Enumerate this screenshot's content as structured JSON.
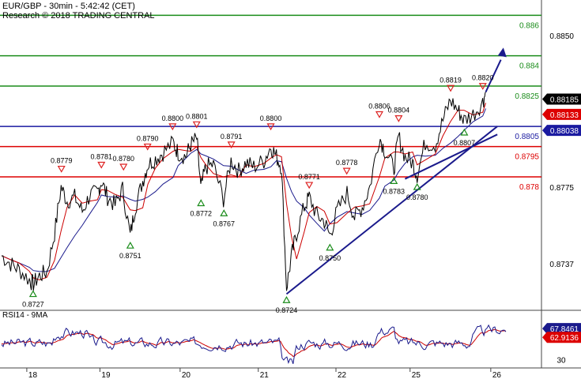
{
  "header": {
    "title": "EUR/GBP - 30min - 5:42:42 (CET)",
    "subtitle": "Research © 2018 TRADING CENTRAL"
  },
  "rsi_panel": {
    "label": "RSI14 - 9MA",
    "axis_label_30": "30",
    "value_rsi": "67.8461",
    "value_ma": "62.9136"
  },
  "colors": {
    "price": "#000000",
    "ma_fast": "#cc0000",
    "ma_slow": "#1a1a8c",
    "support_blue": "#1a1aa0",
    "resistance_red": "#dd0000",
    "target_green": "#1a8c1a",
    "up_marker": "#1a8c1a",
    "down_marker": "#dd2222",
    "arrow": "#1a1a8c"
  },
  "chart_data": {
    "type": "line",
    "title": "EUR/GBP - 30min",
    "x_ticks": [
      "18",
      "19",
      "20",
      "21",
      "22",
      "25",
      "26"
    ],
    "y_ticks": [
      "0.8850",
      "0.8775",
      "0.8737"
    ],
    "horizontal_levels": [
      {
        "label": "0.886",
        "value": 0.886,
        "color": "green"
      },
      {
        "label": "0.884",
        "value": 0.884,
        "color": "green"
      },
      {
        "label": "0.8825",
        "value": 0.8825,
        "color": "green"
      },
      {
        "label": "0.8805",
        "value": 0.8805,
        "color": "blue"
      },
      {
        "label": "0.8795",
        "value": 0.8795,
        "color": "red"
      },
      {
        "label": "0.878",
        "value": 0.878,
        "color": "red"
      }
    ],
    "current_price_labels": [
      {
        "label": "0.88185",
        "bg": "#000000"
      },
      {
        "label": "0.88133",
        "bg": "#dd0000"
      },
      {
        "label": "0.88038",
        "bg": "#1a1aa0"
      }
    ],
    "peak_labels": [
      {
        "label": "0.8779",
        "t": 0.1187,
        "v": 0.8779
      },
      {
        "label": "0.8781",
        "t": 0.1979,
        "v": 0.8781
      },
      {
        "label": "0.8780",
        "t": 0.2418,
        "v": 0.878
      },
      {
        "label": "0.8790",
        "t": 0.2895,
        "v": 0.879
      },
      {
        "label": "0.8800",
        "t": 0.3391,
        "v": 0.88
      },
      {
        "label": "0.8801",
        "t": 0.3868,
        "v": 0.8801
      },
      {
        "label": "0.8791",
        "t": 0.4556,
        "v": 0.8791
      },
      {
        "label": "0.8800",
        "t": 0.5338,
        "v": 0.88
      },
      {
        "label": "0.8771",
        "t": 0.61,
        "v": 0.8771
      },
      {
        "label": "0.8778",
        "t": 0.6844,
        "v": 0.8778
      },
      {
        "label": "0.8806",
        "t": 0.7492,
        "v": 0.8806
      },
      {
        "label": "0.8804",
        "t": 0.7874,
        "v": 0.8804
      },
      {
        "label": "0.8819",
        "t": 0.8904,
        "v": 0.8819
      },
      {
        "label": "0.8820",
        "t": 0.9542,
        "v": 0.882
      }
    ],
    "trough_labels": [
      {
        "label": "0.8727",
        "t": 0.0625,
        "v": 0.8727
      },
      {
        "label": "0.8751",
        "t": 0.2552,
        "v": 0.8751
      },
      {
        "label": "0.8772",
        "t": 0.3954,
        "v": 0.8772
      },
      {
        "label": "0.8767",
        "t": 0.4409,
        "v": 0.8767
      },
      {
        "label": "0.8724",
        "t": 0.565,
        "v": 0.8724
      },
      {
        "label": "0.8750",
        "t": 0.651,
        "v": 0.875
      },
      {
        "label": "0.8783",
        "t": 0.7778,
        "v": 0.8783
      },
      {
        "label": "0.8780",
        "t": 0.824,
        "v": 0.878
      },
      {
        "label": "0.8807",
        "t": 0.9175,
        "v": 0.8807
      }
    ],
    "price_path": [
      [
        0.0,
        0.8741
      ],
      [
        0.018,
        0.8737
      ],
      [
        0.035,
        0.8734
      ],
      [
        0.055,
        0.8729
      ],
      [
        0.063,
        0.8727
      ],
      [
        0.075,
        0.8731
      ],
      [
        0.09,
        0.8733
      ],
      [
        0.105,
        0.8752
      ],
      [
        0.118,
        0.8775
      ],
      [
        0.13,
        0.8768
      ],
      [
        0.145,
        0.877
      ],
      [
        0.16,
        0.8763
      ],
      [
        0.175,
        0.8771
      ],
      [
        0.19,
        0.8772
      ],
      [
        0.198,
        0.8778
      ],
      [
        0.21,
        0.877
      ],
      [
        0.225,
        0.8766
      ],
      [
        0.24,
        0.8774
      ],
      [
        0.255,
        0.8751
      ],
      [
        0.265,
        0.8765
      ],
      [
        0.28,
        0.8778
      ],
      [
        0.29,
        0.8786
      ],
      [
        0.305,
        0.8789
      ],
      [
        0.32,
        0.8792
      ],
      [
        0.34,
        0.8797
      ],
      [
        0.35,
        0.8792
      ],
      [
        0.365,
        0.879
      ],
      [
        0.375,
        0.8796
      ],
      [
        0.387,
        0.8799
      ],
      [
        0.395,
        0.8774
      ],
      [
        0.405,
        0.8785
      ],
      [
        0.42,
        0.8786
      ],
      [
        0.44,
        0.8769
      ],
      [
        0.455,
        0.8788
      ],
      [
        0.47,
        0.8783
      ],
      [
        0.485,
        0.8787
      ],
      [
        0.5,
        0.8785
      ],
      [
        0.52,
        0.8788
      ],
      [
        0.534,
        0.8795
      ],
      [
        0.545,
        0.879
      ],
      [
        0.555,
        0.8785
      ],
      [
        0.565,
        0.8725
      ],
      [
        0.575,
        0.8741
      ],
      [
        0.585,
        0.8752
      ],
      [
        0.6,
        0.8765
      ],
      [
        0.61,
        0.877
      ],
      [
        0.625,
        0.8761
      ],
      [
        0.64,
        0.8758
      ],
      [
        0.651,
        0.8751
      ],
      [
        0.665,
        0.8763
      ],
      [
        0.685,
        0.8772
      ],
      [
        0.7,
        0.876
      ],
      [
        0.715,
        0.8765
      ],
      [
        0.73,
        0.8775
      ],
      [
        0.749,
        0.88
      ],
      [
        0.76,
        0.8793
      ],
      [
        0.778,
        0.8784
      ],
      [
        0.787,
        0.88
      ],
      [
        0.8,
        0.879
      ],
      [
        0.815,
        0.8787
      ],
      [
        0.824,
        0.8781
      ],
      [
        0.84,
        0.8797
      ],
      [
        0.86,
        0.8796
      ],
      [
        0.875,
        0.8808
      ],
      [
        0.89,
        0.8818
      ],
      [
        0.905,
        0.8813
      ],
      [
        0.917,
        0.8808
      ],
      [
        0.935,
        0.8811
      ],
      [
        0.954,
        0.8817
      ],
      [
        0.96,
        0.8822
      ]
    ],
    "rsi_panel": {
      "name": "RSI14 - 9MA",
      "y_tick": "30",
      "rsi_last": 67.8461,
      "ma_last": 62.9136
    },
    "trendlines": [
      "rising support from 0.8724 low",
      "rising support from 0.8780 low"
    ],
    "projection": "arrow up toward 0.884"
  }
}
